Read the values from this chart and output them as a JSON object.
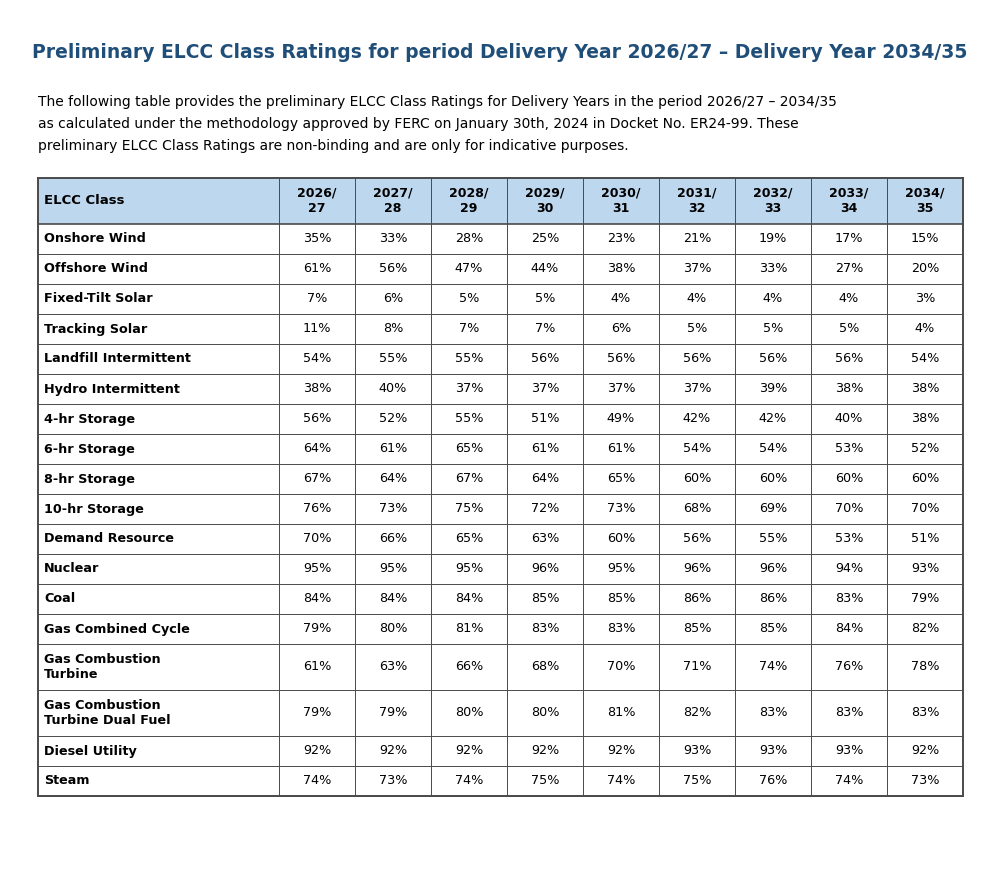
{
  "title": "Preliminary ELCC Class Ratings for period Delivery Year 2026/27 – Delivery Year 2034/35",
  "subtitle_lines": [
    "The following table provides the preliminary ELCC Class Ratings for Delivery Years in the period 2026/27 – 2034/35",
    "as calculated under the methodology approved by FERC on January 30th, 2024 in Docket No. ER24-99. These",
    "preliminary ELCC Class Ratings are non-binding and are only for indicative purposes."
  ],
  "col_headers": [
    "ELCC Class",
    "2026/\n27",
    "2027/\n28",
    "2028/\n29",
    "2029/\n30",
    "2030/\n31",
    "2031/\n32",
    "2032/\n33",
    "2033/\n34",
    "2034/\n35"
  ],
  "rows": [
    [
      "Onshore Wind",
      "35%",
      "33%",
      "28%",
      "25%",
      "23%",
      "21%",
      "19%",
      "17%",
      "15%"
    ],
    [
      "Offshore Wind",
      "61%",
      "56%",
      "47%",
      "44%",
      "38%",
      "37%",
      "33%",
      "27%",
      "20%"
    ],
    [
      "Fixed-Tilt Solar",
      "7%",
      "6%",
      "5%",
      "5%",
      "4%",
      "4%",
      "4%",
      "4%",
      "3%"
    ],
    [
      "Tracking Solar",
      "11%",
      "8%",
      "7%",
      "7%",
      "6%",
      "5%",
      "5%",
      "5%",
      "4%"
    ],
    [
      "Landfill Intermittent",
      "54%",
      "55%",
      "55%",
      "56%",
      "56%",
      "56%",
      "56%",
      "56%",
      "54%"
    ],
    [
      "Hydro Intermittent",
      "38%",
      "40%",
      "37%",
      "37%",
      "37%",
      "37%",
      "39%",
      "38%",
      "38%"
    ],
    [
      "4-hr Storage",
      "56%",
      "52%",
      "55%",
      "51%",
      "49%",
      "42%",
      "42%",
      "40%",
      "38%"
    ],
    [
      "6-hr Storage",
      "64%",
      "61%",
      "65%",
      "61%",
      "61%",
      "54%",
      "54%",
      "53%",
      "52%"
    ],
    [
      "8-hr Storage",
      "67%",
      "64%",
      "67%",
      "64%",
      "65%",
      "60%",
      "60%",
      "60%",
      "60%"
    ],
    [
      "10-hr Storage",
      "76%",
      "73%",
      "75%",
      "72%",
      "73%",
      "68%",
      "69%",
      "70%",
      "70%"
    ],
    [
      "Demand Resource",
      "70%",
      "66%",
      "65%",
      "63%",
      "60%",
      "56%",
      "55%",
      "53%",
      "51%"
    ],
    [
      "Nuclear",
      "95%",
      "95%",
      "95%",
      "96%",
      "95%",
      "96%",
      "96%",
      "94%",
      "93%"
    ],
    [
      "Coal",
      "84%",
      "84%",
      "84%",
      "85%",
      "85%",
      "86%",
      "86%",
      "83%",
      "79%"
    ],
    [
      "Gas Combined Cycle",
      "79%",
      "80%",
      "81%",
      "83%",
      "83%",
      "85%",
      "85%",
      "84%",
      "82%"
    ],
    [
      "Gas Combustion\nTurbine",
      "61%",
      "63%",
      "66%",
      "68%",
      "70%",
      "71%",
      "74%",
      "76%",
      "78%"
    ],
    [
      "Gas Combustion\nTurbine Dual Fuel",
      "79%",
      "79%",
      "80%",
      "80%",
      "81%",
      "82%",
      "83%",
      "83%",
      "83%"
    ],
    [
      "Diesel Utility",
      "92%",
      "92%",
      "92%",
      "92%",
      "92%",
      "93%",
      "93%",
      "93%",
      "92%"
    ],
    [
      "Steam",
      "74%",
      "73%",
      "74%",
      "75%",
      "74%",
      "75%",
      "76%",
      "74%",
      "73%"
    ]
  ],
  "header_bg": "#BDD7EE",
  "header_text_color": "#000000",
  "border_color": "#4A4A4A",
  "title_color": "#1F4E79",
  "body_text_color": "#000000",
  "background_color": "#FFFFFF",
  "col_widths": [
    2.6,
    0.82,
    0.82,
    0.82,
    0.82,
    0.82,
    0.82,
    0.82,
    0.82,
    0.82
  ]
}
